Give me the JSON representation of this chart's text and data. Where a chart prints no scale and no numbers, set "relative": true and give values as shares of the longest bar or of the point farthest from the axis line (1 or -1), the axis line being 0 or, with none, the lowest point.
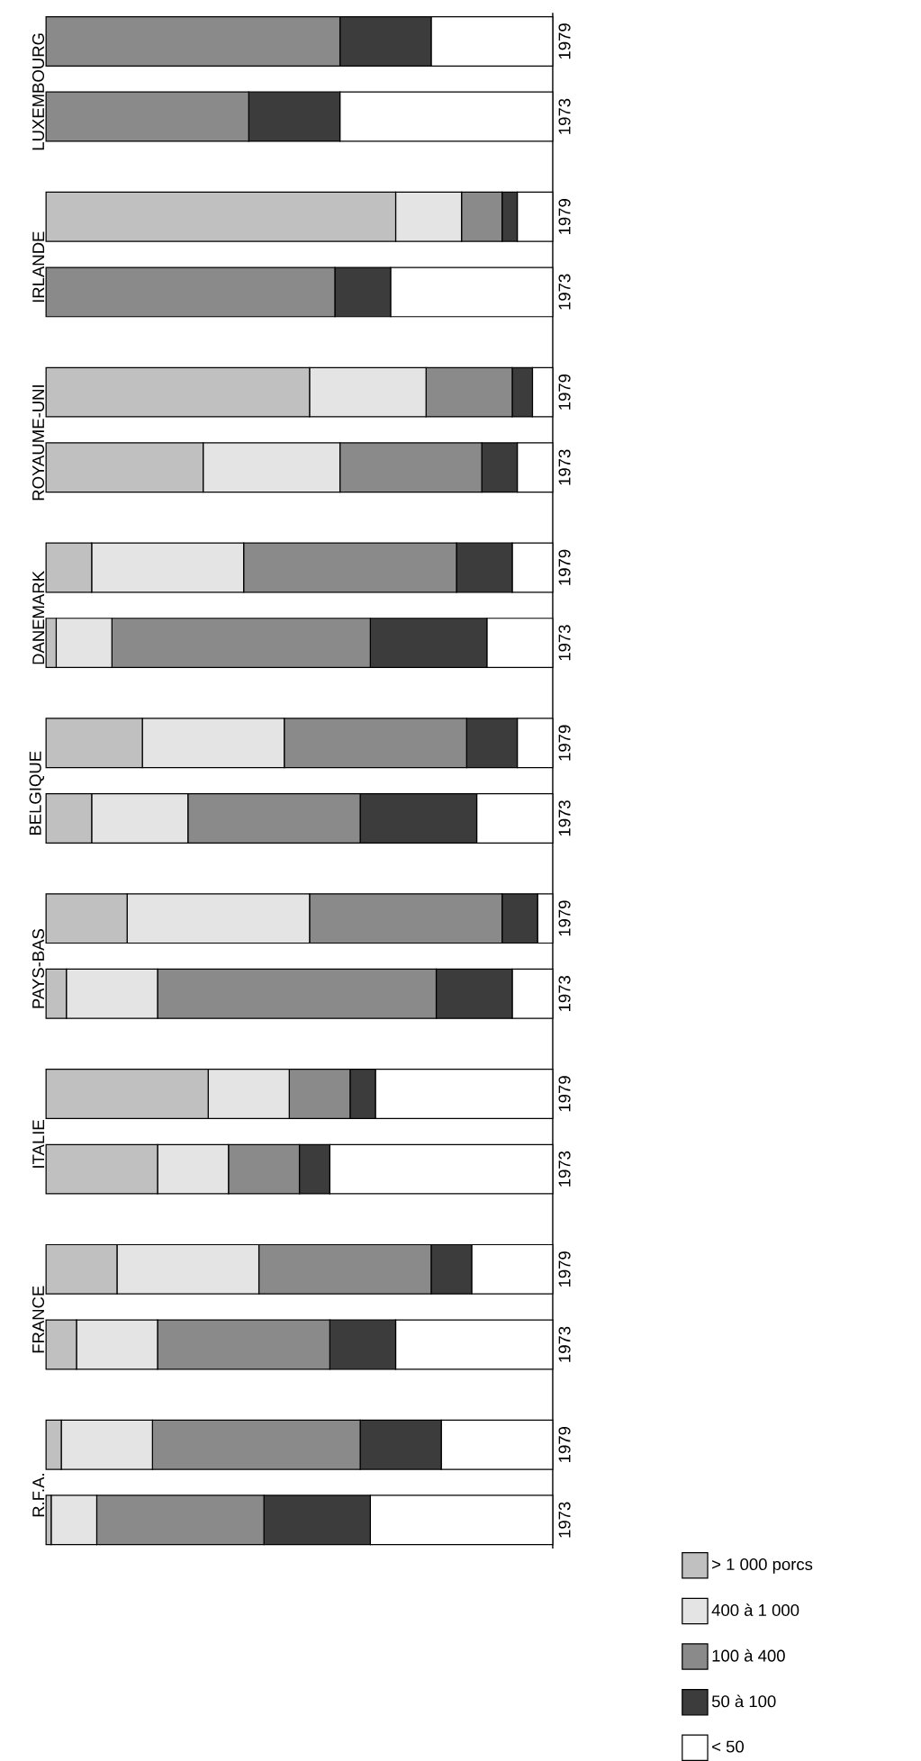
{
  "chart_data": {
    "type": "bar",
    "orientation": "horizontal",
    "stacked": true,
    "relative": true,
    "legend": "bottom right",
    "categories": [
      "1979",
      "1973",
      "1979",
      "1973",
      "1979",
      "1973",
      "1979",
      "1973",
      "1979",
      "1973",
      "1979",
      "1973",
      "1979",
      "1973",
      "1979",
      "1973",
      "1979",
      "1973"
    ],
    "series": [
      {
        "name": "> 1 000 porcs",
        "color": "#c0c0c0",
        "values": [
          0,
          0,
          0.69,
          0,
          0.52,
          0.31,
          0.09,
          0.02,
          0.19,
          0.09,
          0.16,
          0.04,
          0.32,
          0.22,
          0.14,
          0.06,
          0.03,
          0.01
        ]
      },
      {
        "name": "400 à 1 000",
        "color": "#e4e4e4",
        "values": [
          0,
          0,
          0.13,
          0,
          0.23,
          0.27,
          0.3,
          0.11,
          0.28,
          0.19,
          0.36,
          0.18,
          0.16,
          0.14,
          0.28,
          0.16,
          0.18,
          0.09
        ]
      },
      {
        "name": "100 à 400",
        "color": "#8a8a8a",
        "values": [
          0.58,
          0.4,
          0.08,
          0.57,
          0.17,
          0.28,
          0.42,
          0.51,
          0.36,
          0.34,
          0.38,
          0.55,
          0.12,
          0.14,
          0.34,
          0.34,
          0.41,
          0.33
        ]
      },
      {
        "name": "50 à 100",
        "color": "#3c3c3c",
        "values": [
          0.18,
          0.18,
          0.03,
          0.11,
          0.04,
          0.07,
          0.11,
          0.23,
          0.1,
          0.23,
          0.07,
          0.15,
          0.05,
          0.06,
          0.08,
          0.13,
          0.16,
          0.21
        ]
      },
      {
        "name": "< 50",
        "color": "#ffffff",
        "values": [
          0.24,
          0.42,
          0.07,
          0.32,
          0.04,
          0.07,
          0.08,
          0.13,
          0.07,
          0.15,
          0.03,
          0.08,
          0.35,
          0.44,
          0.16,
          0.31,
          0.22,
          0.36
        ]
      }
    ],
    "annotations": [
      "LUXEMBOURG",
      "IRLANDE",
      "ROYAUME-UNI",
      "DANEMARK",
      "BELGIQUE",
      "PAYS-BAS",
      "ITALIE",
      "FRANCE",
      "R.F.A."
    ]
  }
}
